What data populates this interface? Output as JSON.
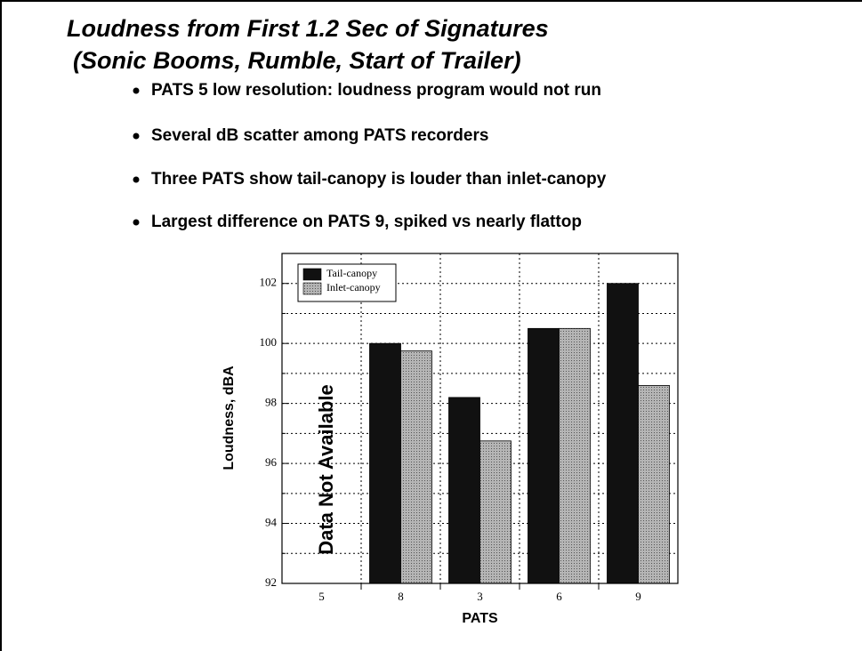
{
  "slide": {
    "title": [
      "Loudness from First 1.2 Sec of Signatures",
      "(Sonic Booms, Rumble, Start of Trailer)"
    ],
    "bullets": [
      "PATS 5 low resolution: loudness program would not run",
      "Several dB scatter among PATS recorders",
      "Three PATS show tail-canopy is louder than inlet-canopy",
      "Largest difference on PATS 9, spiked vs nearly flattop"
    ]
  },
  "chart_data": {
    "type": "bar",
    "x_label": "PATS",
    "y_label": "Loudness, dBA",
    "annotation": "Data Not Available",
    "categories": [
      "5",
      "8",
      "3",
      "6",
      "9"
    ],
    "series": [
      {
        "name": "Tail-canopy",
        "color": "#111111",
        "values": [
          null,
          100.0,
          98.2,
          100.5,
          102.0
        ]
      },
      {
        "name": "Inlet-canopy",
        "color": "#9a9a9a",
        "values": [
          null,
          99.75,
          96.75,
          100.5,
          98.6
        ]
      }
    ],
    "ylim": [
      92,
      103
    ],
    "yticks": [
      92,
      94,
      96,
      98,
      100,
      102
    ],
    "y_minor_ticks": [
      93,
      95,
      97,
      99,
      101,
      103
    ],
    "grid": true,
    "legend": "upper left"
  }
}
